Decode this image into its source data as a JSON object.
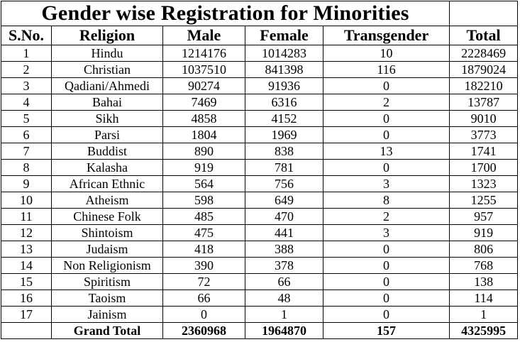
{
  "title": "Gender wise Registration for Minorities",
  "headers": {
    "sno": "S.No.",
    "religion": "Religion",
    "male": "Male",
    "female": "Female",
    "transgender": "Transgender",
    "total": "Total"
  },
  "rows": [
    {
      "sno": "1",
      "religion": "Hindu",
      "male": "1214176",
      "female": "1014283",
      "transgender": "10",
      "total": "2228469"
    },
    {
      "sno": "2",
      "religion": "Christian",
      "male": "1037510",
      "female": "841398",
      "transgender": "116",
      "total": "1879024"
    },
    {
      "sno": "3",
      "religion": "Qadiani/Ahmedi",
      "male": "90274",
      "female": "91936",
      "transgender": "0",
      "total": "182210"
    },
    {
      "sno": "4",
      "religion": "Bahai",
      "male": "7469",
      "female": "6316",
      "transgender": "2",
      "total": "13787"
    },
    {
      "sno": "5",
      "religion": "Sikh",
      "male": "4858",
      "female": "4152",
      "transgender": "0",
      "total": "9010"
    },
    {
      "sno": "6",
      "religion": "Parsi",
      "male": "1804",
      "female": "1969",
      "transgender": "0",
      "total": "3773"
    },
    {
      "sno": "7",
      "religion": "Buddist",
      "male": "890",
      "female": "838",
      "transgender": "13",
      "total": "1741"
    },
    {
      "sno": "8",
      "religion": "Kalasha",
      "male": "919",
      "female": "781",
      "transgender": "0",
      "total": "1700"
    },
    {
      "sno": "9",
      "religion": "African Ethnic",
      "male": "564",
      "female": "756",
      "transgender": "3",
      "total": "1323"
    },
    {
      "sno": "10",
      "religion": "Atheism",
      "male": "598",
      "female": "649",
      "transgender": "8",
      "total": "1255"
    },
    {
      "sno": "11",
      "religion": "Chinese Folk",
      "male": "485",
      "female": "470",
      "transgender": "2",
      "total": "957"
    },
    {
      "sno": "12",
      "religion": "Shintoism",
      "male": "475",
      "female": "441",
      "transgender": "3",
      "total": "919"
    },
    {
      "sno": "13",
      "religion": "Judaism",
      "male": "418",
      "female": "388",
      "transgender": "0",
      "total": "806"
    },
    {
      "sno": "14",
      "religion": "Non Religionism",
      "male": "390",
      "female": "378",
      "transgender": "0",
      "total": "768"
    },
    {
      "sno": "15",
      "religion": "Spiritism",
      "male": "72",
      "female": "66",
      "transgender": "0",
      "total": "138"
    },
    {
      "sno": "16",
      "religion": "Taoism",
      "male": "66",
      "female": "48",
      "transgender": "0",
      "total": "114"
    },
    {
      "sno": "17",
      "religion": "Jainism",
      "male": "0",
      "female": "1",
      "transgender": "0",
      "total": "1"
    }
  ],
  "grand_total": {
    "label": "Grand Total",
    "male": "2360968",
    "female": "1964870",
    "transgender": "157",
    "total": "4325995"
  }
}
